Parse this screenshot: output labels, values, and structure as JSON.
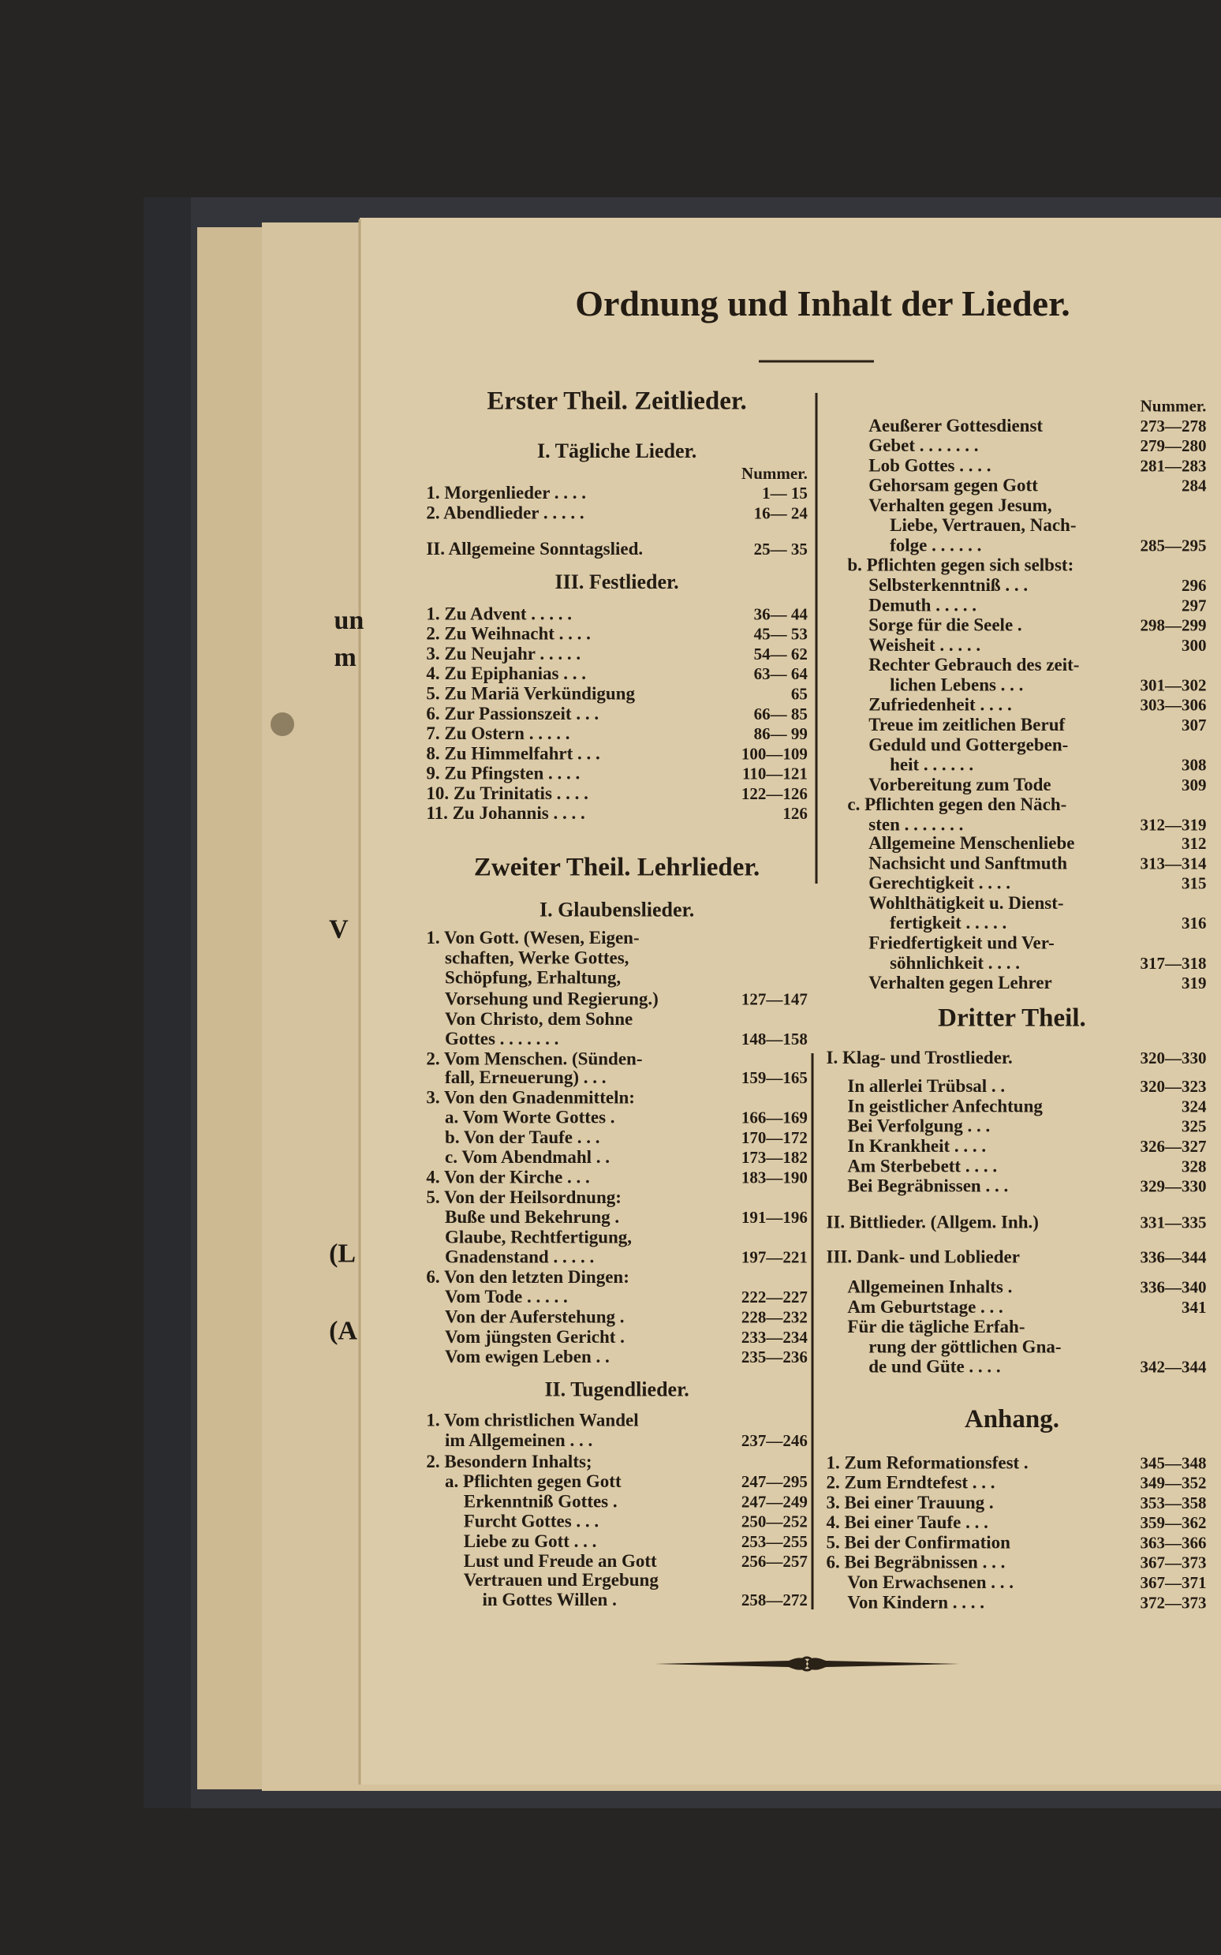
{
  "title": "Ordnung und Inhalt der Lieder.",
  "left_column": [
    {
      "heading": "Erster Theil. Zeitlieder."
    },
    {
      "subheading": "I. Tägliche Lieder."
    },
    {
      "label": "Nummer."
    },
    {
      "text": "1. Morgenlieder . . . .",
      "pages": "1— 15"
    },
    {
      "text": "2. Abendlieder . . . . .",
      "pages": "16— 24"
    },
    {
      "text": "II. Allgemeine Sonntagslied.",
      "pages": "25— 35"
    },
    {
      "subheading": "III. Festlieder."
    },
    {
      "text": "1. Zu Advent . . . . .",
      "pages": "36— 44"
    },
    {
      "text": "2. Zu Weihnacht . . . .",
      "pages": "45— 53"
    },
    {
      "text": "3. Zu Neujahr . . . . .",
      "pages": "54— 62"
    },
    {
      "text": "4. Zu Epiphanias . . .",
      "pages": "63— 64"
    },
    {
      "text": "5. Zu Mariä Verkündigung",
      "pages": "65"
    },
    {
      "text": "6. Zur Passionszeit . . .",
      "pages": "66— 85"
    },
    {
      "text": "7. Zu Ostern . . . . .",
      "pages": "86— 99"
    },
    {
      "text": "8. Zu Himmelfahrt . . .",
      "pages": "100—109"
    },
    {
      "text": "9. Zu Pfingsten . . . .",
      "pages": "110—121"
    },
    {
      "text": "10. Zu Trinitatis . . . .",
      "pages": "122—126"
    },
    {
      "text": "11. Zu Johannis . . . .",
      "pages": "126"
    },
    {
      "heading": "Zweiter Theil. Lehrlieder."
    },
    {
      "subheading": "I. Glaubenslieder."
    },
    {
      "text": "1. Von Gott. (Wesen, Eigen-"
    },
    {
      "text": "schaften, Werke Gottes,"
    },
    {
      "text": "Schöpfung, Erhaltung,"
    },
    {
      "text": "Vorsehung und Regierung.)",
      "pages": "127—147"
    },
    {
      "text": "Von Christo, dem Sohne"
    },
    {
      "text": "Gottes . . . . . . .",
      "pages": "148—158"
    },
    {
      "text": "2. Vom Menschen. (Sünden-"
    },
    {
      "text": "fall, Erneuerung) . . .",
      "pages": "159—165"
    },
    {
      "text": "3. Von den Gnadenmitteln:"
    },
    {
      "text": "a. Vom Worte Gottes .",
      "pages": "166—169"
    },
    {
      "text": "b. Von der Taufe . . .",
      "pages": "170—172"
    },
    {
      "text": "c. Vom Abendmahl . .",
      "pages": "173—182"
    },
    {
      "text": "4. Von der Kirche . . .",
      "pages": "183—190"
    },
    {
      "text": "5. Von der Heilsordnung:"
    },
    {
      "text": "Buße und Bekehrung .",
      "pages": "191—196"
    },
    {
      "text": "Glaube, Rechtfertigung,"
    },
    {
      "text": "Gnadenstand . . . . .",
      "pages": "197—221"
    },
    {
      "text": "6. Von den letzten Dingen:"
    },
    {
      "text": "Vom Tode . . . . .",
      "pages": "222—227"
    },
    {
      "text": "Von der Auferstehung .",
      "pages": "228—232"
    },
    {
      "text": "Vom jüngsten Gericht .",
      "pages": "233—234"
    },
    {
      "text": "Vom ewigen Leben . .",
      "pages": "235—236"
    },
    {
      "subheading": "II. Tugendlieder."
    },
    {
      "text": "1. Vom christlichen Wandel"
    },
    {
      "text": "im Allgemeinen . . .",
      "pages": "237—246"
    },
    {
      "text": "2. Besondern Inhalts;"
    },
    {
      "text": "a. Pflichten gegen Gott",
      "pages": "247—295"
    },
    {
      "text": "Erkenntniß Gottes .",
      "pages": "247—249"
    },
    {
      "text": "Furcht Gottes . . .",
      "pages": "250—252"
    },
    {
      "text": "Liebe zu Gott . . .",
      "pages": "253—255"
    },
    {
      "text": "Lust und Freude an Gott",
      "pages": "256—257"
    },
    {
      "text": "Vertrauen und Ergebung"
    },
    {
      "text": "in Gottes Willen .",
      "pages": "258—272"
    }
  ],
  "right_column": [
    {
      "label": "Nummer."
    },
    {
      "text": "Aeußerer Gottesdienst",
      "pages": "273—278"
    },
    {
      "text": "Gebet . . . . . . .",
      "pages": "279—280"
    },
    {
      "text": "Lob Gottes . . . .",
      "pages": "281—283"
    },
    {
      "text": "Gehorsam gegen Gott",
      "pages": "284"
    },
    {
      "text": "Verhalten gegen Jesum,"
    },
    {
      "text": "Liebe, Vertrauen, Nach-"
    },
    {
      "text": "folge . . . . . .",
      "pages": "285—295"
    },
    {
      "text": "b. Pflichten gegen sich selbst:"
    },
    {
      "text": "Selbsterkenntniß . . .",
      "pages": "296"
    },
    {
      "text": "Demuth . . . . .",
      "pages": "297"
    },
    {
      "text": "Sorge für die Seele .",
      "pages": "298—299"
    },
    {
      "text": "Weisheit . . . . .",
      "pages": "300"
    },
    {
      "text": "Rechter Gebrauch des zeit-"
    },
    {
      "text": "lichen Lebens . . .",
      "pages": "301—302"
    },
    {
      "text": "Zufriedenheit . . . .",
      "pages": "303—306"
    },
    {
      "text": "Treue im zeitlichen Beruf",
      "pages": "307"
    },
    {
      "text": "Geduld und Gottergeben-"
    },
    {
      "text": "heit . . . . . .",
      "pages": "308"
    },
    {
      "text": "Vorbereitung zum Tode",
      "pages": "309"
    },
    {
      "text": "c. Pflichten gegen den Näch-"
    },
    {
      "text": "sten . . . . . . .",
      "pages": "312—319"
    },
    {
      "text": "Allgemeine Menschenliebe",
      "pages": "312"
    },
    {
      "text": "Nachsicht und Sanftmuth",
      "pages": "313—314"
    },
    {
      "text": "Gerechtigkeit . . . .",
      "pages": "315"
    },
    {
      "text": "Wohlthätigkeit u. Dienst-"
    },
    {
      "text": "fertigkeit . . . . .",
      "pages": "316"
    },
    {
      "text": "Friedfertigkeit und Ver-"
    },
    {
      "text": "söhnlichkeit . . . .",
      "pages": "317—318"
    },
    {
      "text": "Verhalten gegen Lehrer",
      "pages": "319"
    },
    {
      "heading": "Dritter Theil."
    },
    {
      "text": "I. Klag- und Trostlieder.",
      "pages": "320—330"
    },
    {
      "text": "In allerlei Trübsal . .",
      "pages": "320—323"
    },
    {
      "text": "In geistlicher Anfechtung",
      "pages": "324"
    },
    {
      "text": "Bei Verfolgung . . .",
      "pages": "325"
    },
    {
      "text": "In Krankheit . . . .",
      "pages": "326—327"
    },
    {
      "text": "Am Sterbebett . . . .",
      "pages": "328"
    },
    {
      "text": "Bei Begräbnissen . . .",
      "pages": "329—330"
    },
    {
      "text": "II. Bittlieder. (Allgem. Inh.)",
      "pages": "331—335"
    },
    {
      "text": "III. Dank- und Loblieder",
      "pages": "336—344"
    },
    {
      "text": "Allgemeinen Inhalts .",
      "pages": "336—340"
    },
    {
      "text": "Am Geburtstage . . .",
      "pages": "341"
    },
    {
      "text": "Für die tägliche Erfah-"
    },
    {
      "text": "rung der göttlichen Gna-"
    },
    {
      "text": "de und Güte . . . .",
      "pages": "342—344"
    },
    {
      "heading": "Anhang."
    },
    {
      "text": "1. Zum Reformationsfest .",
      "pages": "345—348"
    },
    {
      "text": "2. Zum Erndtefest . . .",
      "pages": "349—352"
    },
    {
      "text": "3. Bei einer Trauung .",
      "pages": "353—358"
    },
    {
      "text": "4. Bei einer Taufe . . .",
      "pages": "359—362"
    },
    {
      "text": "5. Bei der Confirmation",
      "pages": "363—366"
    },
    {
      "text": "6. Bei Begräbnissen . . .",
      "pages": "367—373"
    },
    {
      "text": "Von Erwachsenen . . .",
      "pages": "367—371"
    },
    {
      "text": "Von Kindern . . . .",
      "pages": "372—373"
    }
  ],
  "fragments": [
    "un",
    "m",
    "V",
    "(L",
    "(A"
  ]
}
